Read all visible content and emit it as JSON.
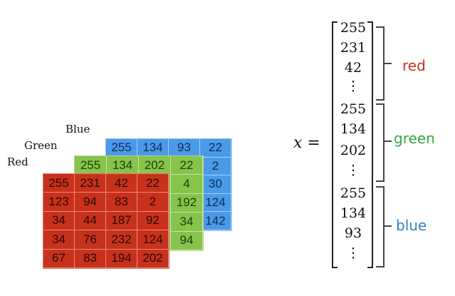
{
  "layer_labels": {
    "blue": "Blue",
    "green": "Green",
    "red": "Red"
  },
  "blue_grid": [
    "255",
    "134",
    "93",
    "22",
    "",
    "",
    "",
    "2",
    "",
    "",
    "",
    "30",
    "",
    "",
    "",
    "124"
  ],
  "blue_grid_extra": [
    "142"
  ],
  "green_grid": [
    "255",
    "134",
    "202",
    "22",
    "",
    "",
    "",
    "4",
    "",
    "",
    "",
    "192",
    "",
    "",
    "",
    "34"
  ],
  "green_grid_extra": [
    "94"
  ],
  "red_grid": [
    "255",
    "231",
    "42",
    "22",
    "123",
    "94",
    "83",
    "2",
    "34",
    "44",
    "187",
    "92",
    "34",
    "76",
    "232",
    "124",
    "67",
    "83",
    "194",
    "202"
  ],
  "equation": {
    "lhs": "x",
    "equals": "="
  },
  "vector": [
    "255",
    "231",
    "42",
    "⋮",
    "255",
    "134",
    "202",
    "⋮",
    "255",
    "134",
    "93",
    "⋮"
  ],
  "groups": [
    {
      "label": "red",
      "color": "#c8311c"
    },
    {
      "label": "green",
      "color": "#3aa640"
    },
    {
      "label": "blue",
      "color": "#2f7fc8"
    }
  ]
}
